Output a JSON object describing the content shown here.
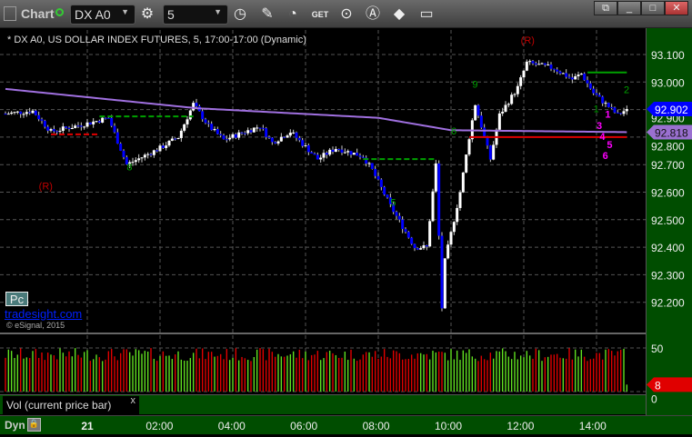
{
  "toolbar": {
    "title": "Chart",
    "symbol": "DX A0",
    "interval": "5",
    "icons": [
      "layout-icon",
      "status-dot-icon",
      "settings-gear-icon",
      "clock-icon",
      "pencil-icon",
      "study-icon",
      "get-icon",
      "play-icon",
      "alert-icon",
      "link-icon",
      "comment-icon"
    ],
    "window_buttons": [
      "restore-icon",
      "minimize-icon",
      "maximize-icon",
      "close-icon"
    ]
  },
  "chart": {
    "title": "* DX A0, US DOLLAR INDEX FUTURES, 5, 17:00-17:00 (Dynamic)",
    "pc_label": "Pc",
    "site": "tradesight.com",
    "copyright": "© eSignal, 2015",
    "volume_legend": "Vol (current price bar)",
    "close_x": "x",
    "dyn": "Dyn"
  },
  "colors": {
    "up_body": "#ffffff",
    "down_body": "#0000ff",
    "ma": "#a070e0",
    "vol_up": "#60e020",
    "vol_down": "#e00000",
    "axis_bg": "#004d00",
    "current_price": "#0000ff",
    "ma_label": "#9a70d0"
  },
  "chart_data": {
    "type": "candlestick",
    "price_axis": {
      "ticks": [
        "93.100",
        "93.000",
        "92.900",
        "92.800",
        "92.700",
        "92.600",
        "92.500",
        "92.400",
        "92.300",
        "92.200"
      ],
      "range": [
        92.16,
        93.2
      ]
    },
    "current_price": "92.902",
    "ma_value": "92.818",
    "volume_axis": {
      "ticks": [
        "50",
        "0"
      ],
      "current": "8"
    },
    "time_ticks": [
      "21",
      "02:00",
      "04:00",
      "06:00",
      "08:00",
      "10:00",
      "12:00",
      "14:00"
    ],
    "key_prices": [
      [
        "20 21:45",
        92.885
      ],
      [
        "20 22:30",
        92.895
      ],
      [
        "20 23:00",
        92.82
      ],
      [
        "21 00:00",
        92.85
      ],
      [
        "21 00:35",
        92.87
      ],
      [
        "21 01:05",
        92.7
      ],
      [
        "21 02:00",
        92.76
      ],
      [
        "21 02:30",
        92.8
      ],
      [
        "21 02:55",
        92.92
      ],
      [
        "21 03:20",
        92.84
      ],
      [
        "21 03:45",
        92.79
      ],
      [
        "21 04:45",
        92.84
      ],
      [
        "21 05:05",
        92.78
      ],
      [
        "21 05:35",
        92.82
      ],
      [
        "21 06:20",
        92.72
      ],
      [
        "21 06:50",
        92.76
      ],
      [
        "21 07:35",
        92.73
      ],
      [
        "21 07:50",
        92.68
      ],
      [
        "21 08:20",
        92.55
      ],
      [
        "21 09:00",
        92.4
      ],
      [
        "21 09:20",
        92.4
      ],
      [
        "21 09:35",
        92.7
      ],
      [
        "21 09:45",
        92.18
      ],
      [
        "21 09:50",
        92.35
      ],
      [
        "21 10:15",
        92.6
      ],
      [
        "21 10:30",
        92.8
      ],
      [
        "21 10:40",
        92.92
      ],
      [
        "21 11:05",
        92.72
      ],
      [
        "21 11:20",
        92.88
      ],
      [
        "21 11:50",
        92.98
      ],
      [
        "21 12:05",
        93.07
      ],
      [
        "21 12:50",
        93.05
      ],
      [
        "21 13:20",
        93.01
      ],
      [
        "21 13:35",
        93.03
      ],
      [
        "21 13:55",
        92.96
      ],
      [
        "21 14:15",
        92.92
      ],
      [
        "21 14:35",
        92.88
      ],
      [
        "21 14:50",
        92.902
      ]
    ],
    "moving_average": [
      [
        "20 21:45",
        92.975
      ],
      [
        "21 03:00",
        92.905
      ],
      [
        "21 08:00",
        92.87
      ],
      [
        "21 10:00",
        92.825
      ],
      [
        "21 14:50",
        92.818
      ]
    ],
    "levels": [
      {
        "price": 92.875,
        "from": "21 00:20",
        "to": "21 02:55",
        "color": "#00a000",
        "style": "dashed"
      },
      {
        "price": 92.81,
        "from": "20 23:00",
        "to": "21 00:20",
        "color": "#e00000",
        "style": "dashed"
      },
      {
        "price": 92.72,
        "from": "21 07:35",
        "to": "21 09:35",
        "color": "#00a000",
        "style": "dashed"
      },
      {
        "price": 92.8,
        "from": "21 10:30",
        "to": "21 14:50",
        "color": "#e00000",
        "style": "solid"
      },
      {
        "price": 93.035,
        "from": "21 13:45",
        "to": "21 14:50",
        "color": "#00a000",
        "style": "solid"
      }
    ],
    "annotations": [
      {
        "text": "(R)",
        "time": "20 22:40",
        "price": 92.61,
        "color": "#c00000"
      },
      {
        "text": "(R)",
        "time": "21 11:55",
        "price": 93.14,
        "color": "#c00000"
      },
      {
        "text": "9",
        "time": "21 10:35",
        "price": 92.98,
        "color": "#00a000"
      },
      {
        "text": "2",
        "time": "21 14:45",
        "price": 92.96,
        "color": "#00a000"
      },
      {
        "text": "1",
        "time": "21 13:55",
        "price": 92.89,
        "color": "#00a000"
      },
      {
        "text": "8",
        "time": "21 01:05",
        "price": 92.68,
        "color": "#00a000"
      },
      {
        "text": "6",
        "time": "21 10:00",
        "price": 92.81,
        "color": "#00a000"
      },
      {
        "text": "5",
        "time": "21 08:20",
        "price": 92.55,
        "color": "#00a000"
      },
      {
        "text": "1",
        "time": "21 13:50",
        "price": 92.87,
        "color": "#ff00ff"
      },
      {
        "text": "3",
        "time": "21 14:00",
        "price": 92.83,
        "color": "#ff00ff"
      },
      {
        "text": "4",
        "time": "21 14:05",
        "price": 92.79,
        "color": "#ff00ff"
      },
      {
        "text": "5",
        "time": "21 14:05",
        "price": 92.76,
        "color": "#ff00ff"
      },
      {
        "text": "6",
        "time": "21 14:10",
        "price": 92.72,
        "color": "#ff00ff"
      }
    ]
  }
}
